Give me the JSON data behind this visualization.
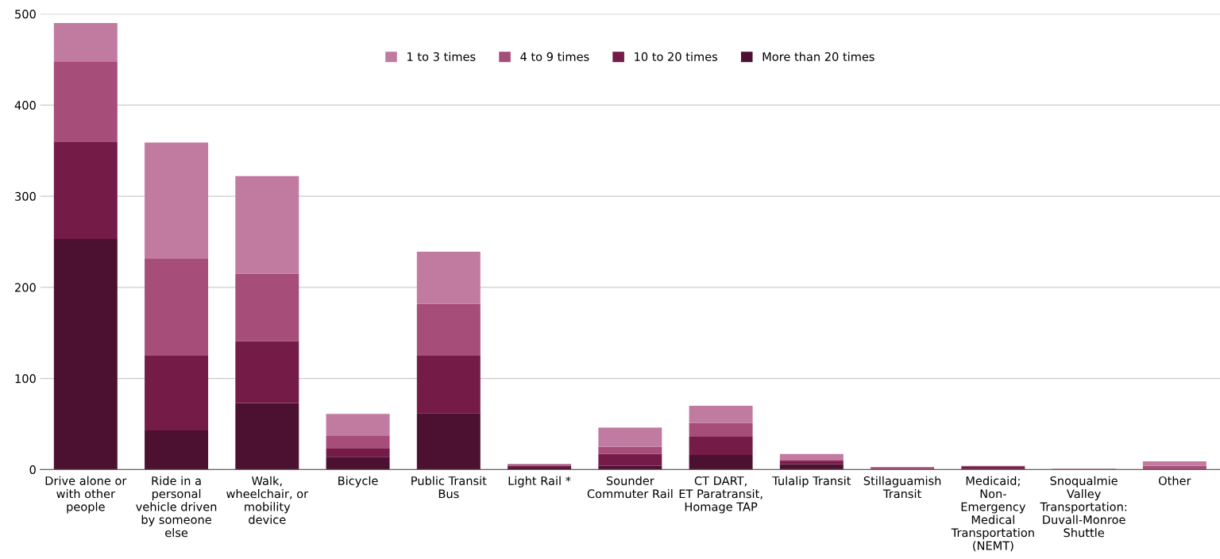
{
  "chart_data": {
    "type": "bar",
    "stacked": true,
    "categories": [
      "Drive alone or\nwith other\npeople",
      "Ride in a\npersonal\nvehicle driven\nby someone\nelse",
      "Walk,\nwheelchair, or\nmobility\ndevice",
      "Bicycle",
      "Public Transit\nBus",
      "Light Rail *",
      "Sounder\nCommuter Rail",
      "CT DART,\nET Paratransit,\nHomage TAP",
      "Tulalip Transit",
      "Stillaguamish\nTransit",
      "Medicaid;\nNon-\nEmergency\nMedical\nTransportation\n(NEMT)",
      "Snoqualmie\nValley\nTransportation:\nDuvall-Monroe\nShuttle",
      "Other"
    ],
    "series": [
      {
        "name": "More than 20 times",
        "color": "#4c1130",
        "values": [
          253,
          43,
          73,
          14,
          62,
          2,
          4,
          16,
          6,
          0,
          1,
          0,
          0
        ]
      },
      {
        "name": "10 to 20 times",
        "color": "#741b47",
        "values": [
          107,
          82,
          68,
          9,
          63,
          2,
          13,
          20,
          3,
          0,
          2,
          0,
          0
        ]
      },
      {
        "name": "4 to 9 times",
        "color": "#a64d79",
        "values": [
          88,
          107,
          74,
          14,
          57,
          2,
          8,
          15,
          2,
          2,
          1,
          0,
          4
        ]
      },
      {
        "name": "1 to 3 times",
        "color": "#c27ba0",
        "values": [
          42,
          127,
          107,
          24,
          57,
          0,
          21,
          19,
          6,
          1,
          0,
          1,
          5
        ]
      }
    ],
    "ylim": [
      0,
      500
    ],
    "yticks": [
      0,
      100,
      200,
      300,
      400,
      500
    ],
    "grid": "y",
    "legend": "top"
  }
}
